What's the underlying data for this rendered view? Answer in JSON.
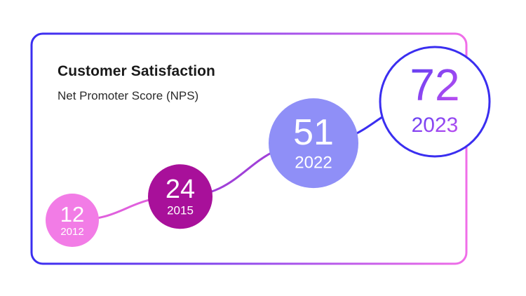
{
  "chart_data": {
    "type": "line",
    "title": "Customer Satisfaction",
    "subtitle": "Net Promoter Score (NPS)",
    "x": [
      "2012",
      "2015",
      "2022",
      "2023"
    ],
    "series": [
      {
        "values": [
          12,
          24,
          51,
          72
        ]
      }
    ],
    "point_colors": [
      "#f27ce6",
      "#a8109a",
      "#8f8ff7",
      "#ffffff"
    ],
    "label_colors": [
      "#ffffff",
      "#ffffff",
      "#ffffff",
      "#7b3ff0"
    ],
    "frame_gradient": [
      "#3a2ef0",
      "#f06ee8"
    ],
    "grid": false,
    "legend": "none"
  }
}
